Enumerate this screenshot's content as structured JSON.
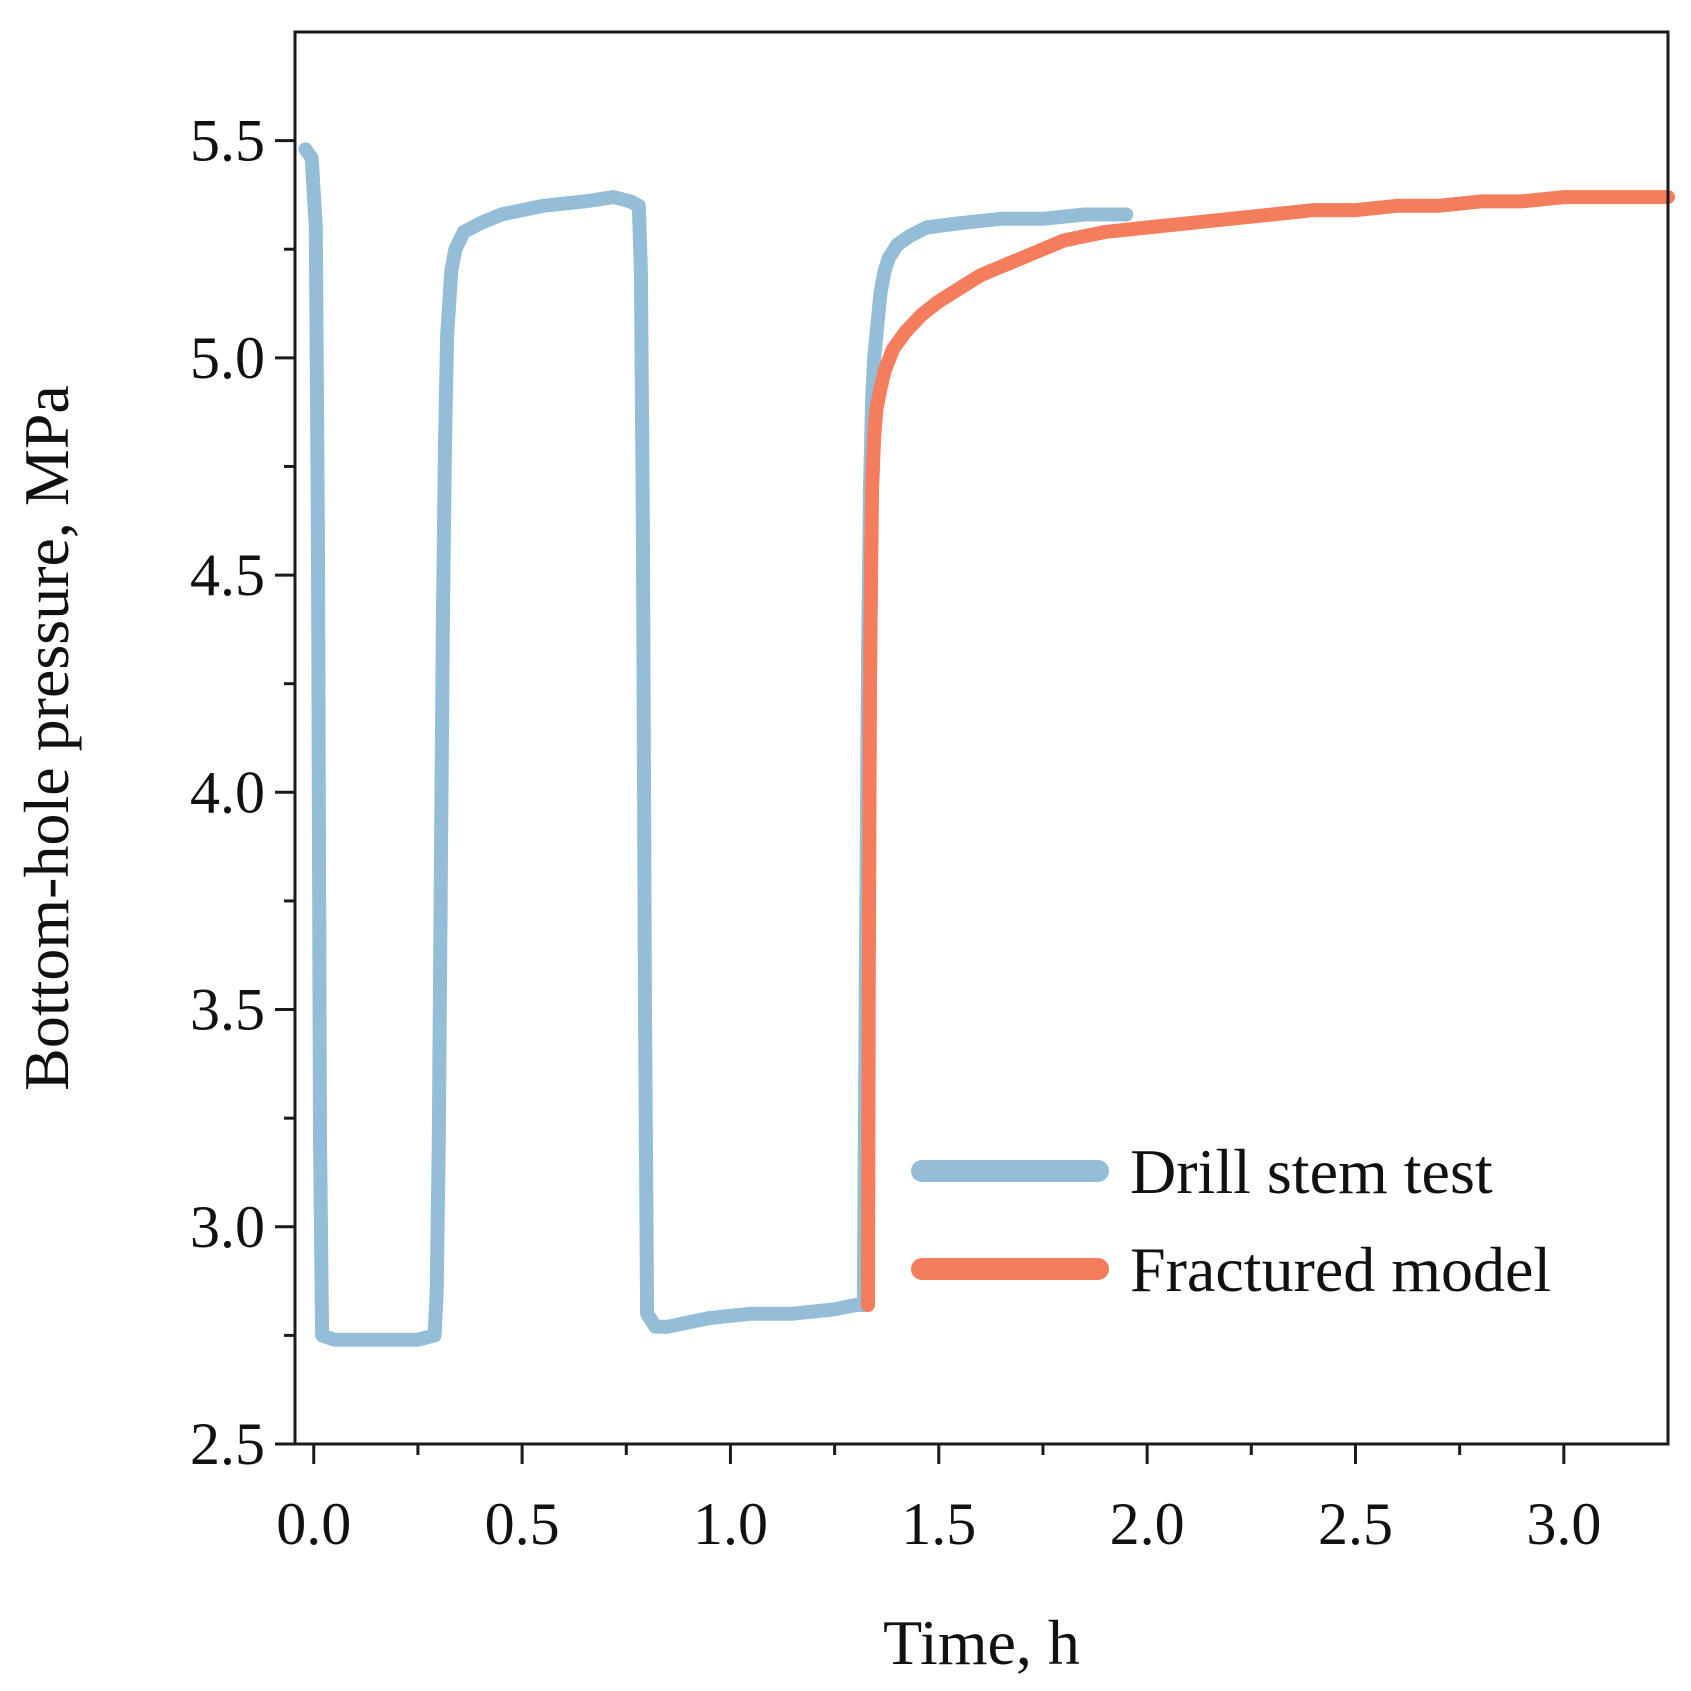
{
  "chart_data": {
    "type": "line",
    "title": "",
    "xlabel": "Time, h",
    "ylabel": "Bottom-hole pressure, MPa",
    "xlim": [
      -0.045,
      3.25
    ],
    "ylim": [
      2.5,
      5.75
    ],
    "x_ticks": [
      0.0,
      0.5,
      1.0,
      1.5,
      2.0,
      2.5,
      3.0
    ],
    "x_tick_labels": [
      "0.0",
      "0.5",
      "1.0",
      "1.5",
      "2.0",
      "2.5",
      "3.0"
    ],
    "y_ticks": [
      2.5,
      3.0,
      3.5,
      4.0,
      4.5,
      5.0,
      5.5
    ],
    "y_tick_labels": [
      "2.5",
      "3.0",
      "3.5",
      "4.0",
      "4.5",
      "5.0",
      "5.5"
    ],
    "grid": false,
    "legend_position": "bottom-right",
    "series": [
      {
        "name": "Drill stem test",
        "color": "#94bdd8",
        "x": [
          -0.02,
          -0.005,
          0.005,
          0.01,
          0.015,
          0.02,
          0.05,
          0.15,
          0.25,
          0.29,
          0.295,
          0.3,
          0.305,
          0.31,
          0.315,
          0.32,
          0.33,
          0.34,
          0.36,
          0.4,
          0.45,
          0.55,
          0.65,
          0.72,
          0.76,
          0.78,
          0.785,
          0.79,
          0.795,
          0.8,
          0.82,
          0.85,
          0.95,
          1.05,
          1.15,
          1.25,
          1.3,
          1.32,
          1.325,
          1.33,
          1.335,
          1.34,
          1.345,
          1.35,
          1.355,
          1.36,
          1.37,
          1.38,
          1.4,
          1.43,
          1.47,
          1.55,
          1.65,
          1.75,
          1.85,
          1.95
        ],
        "y": [
          5.48,
          5.46,
          5.3,
          4.6,
          3.2,
          2.75,
          2.74,
          2.74,
          2.74,
          2.75,
          2.85,
          3.2,
          3.8,
          4.4,
          4.8,
          5.05,
          5.2,
          5.25,
          5.29,
          5.31,
          5.33,
          5.35,
          5.36,
          5.37,
          5.36,
          5.35,
          5.2,
          4.6,
          3.5,
          2.8,
          2.77,
          2.77,
          2.79,
          2.8,
          2.8,
          2.81,
          2.82,
          2.82,
          3.6,
          4.3,
          4.7,
          4.9,
          5.0,
          5.05,
          5.1,
          5.15,
          5.2,
          5.23,
          5.26,
          5.28,
          5.3,
          5.31,
          5.32,
          5.32,
          5.33,
          5.33
        ]
      },
      {
        "name": "Fractured model",
        "color": "#f37d5c",
        "x": [
          1.33,
          1.332,
          1.335,
          1.338,
          1.34,
          1.345,
          1.35,
          1.36,
          1.37,
          1.39,
          1.42,
          1.46,
          1.5,
          1.55,
          1.6,
          1.65,
          1.7,
          1.75,
          1.8,
          1.9,
          2.0,
          2.1,
          2.2,
          2.3,
          2.4,
          2.5,
          2.6,
          2.7,
          2.8,
          2.9,
          3.0,
          3.1,
          3.2,
          3.25
        ],
        "y": [
          2.82,
          3.6,
          4.25,
          4.55,
          4.7,
          4.82,
          4.88,
          4.93,
          4.97,
          5.02,
          5.06,
          5.1,
          5.13,
          5.16,
          5.19,
          5.21,
          5.23,
          5.25,
          5.27,
          5.29,
          5.3,
          5.31,
          5.32,
          5.33,
          5.34,
          5.34,
          5.35,
          5.35,
          5.36,
          5.36,
          5.37,
          5.37,
          5.37,
          5.37
        ]
      }
    ]
  }
}
